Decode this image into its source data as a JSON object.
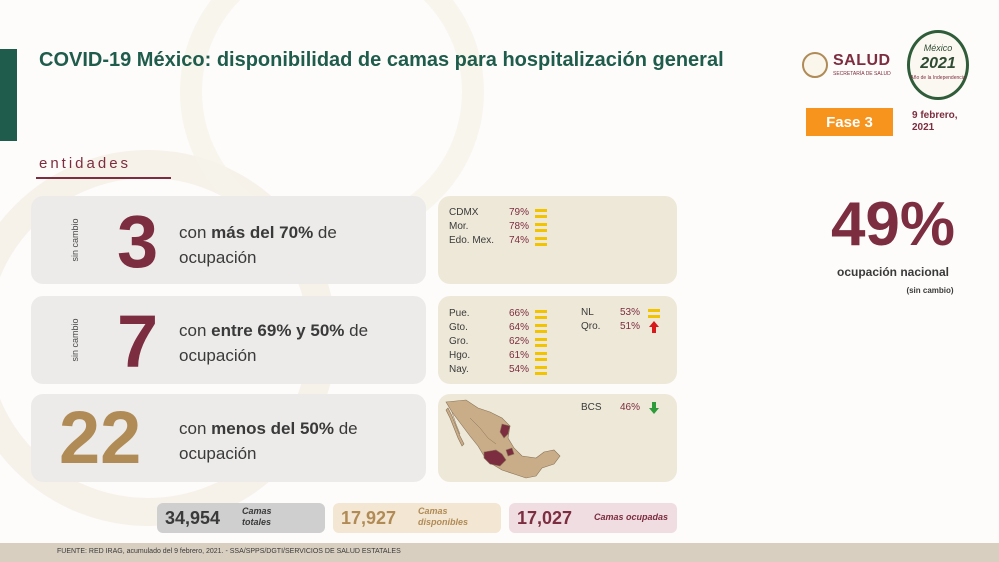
{
  "header": {
    "title": "COVID-19 México: disponibilidad de camas para hospitalización general",
    "fase": "Fase 3",
    "date_line1": "9 febrero,",
    "date_line2": "2021",
    "logo_salud": "SALUD",
    "logo_salud_sub": "SECRETARÍA DE SALUD",
    "logo_2021_mexico": "México",
    "logo_2021_year": "2021",
    "logo_2021_sub": "Año de la Independencia"
  },
  "section_label": "entidades",
  "groups": [
    {
      "side_label": "sin cambio",
      "count": "3",
      "desc_pre": "con ",
      "desc_bold": "más del 70%",
      "desc_post": " de ocupación",
      "states": [
        {
          "name": "CDMX",
          "pct": "79%",
          "trend": "equal"
        },
        {
          "name": "Mor.",
          "pct": "78%",
          "trend": "equal"
        },
        {
          "name": "Edo. Mex.",
          "pct": "74%",
          "trend": "equal"
        }
      ]
    },
    {
      "side_label": "sin cambio",
      "count": "7",
      "desc_pre": "con ",
      "desc_bold": "entre 69% y 50%",
      "desc_post": " de ocupación",
      "states": [
        {
          "name": "Pue.",
          "pct": "66%",
          "trend": "equal"
        },
        {
          "name": "Gto.",
          "pct": "64%",
          "trend": "equal"
        },
        {
          "name": "Gro.",
          "pct": "62%",
          "trend": "equal"
        },
        {
          "name": "Hgo.",
          "pct": "61%",
          "trend": "equal"
        },
        {
          "name": "Nay.",
          "pct": "54%",
          "trend": "equal"
        },
        {
          "name": "NL",
          "pct": "53%",
          "trend": "equal"
        },
        {
          "name": "Qro.",
          "pct": "51%",
          "trend": "up"
        }
      ]
    },
    {
      "side_label": "",
      "count": "22",
      "desc_pre": "con ",
      "desc_bold": "menos del 50%",
      "desc_post": " de ocupación",
      "states": [
        {
          "name": "BCS",
          "pct": "46%",
          "trend": "down"
        }
      ]
    }
  ],
  "national": {
    "pct": "49%",
    "label": "ocupación nacional",
    "sub": "(sin cambio)"
  },
  "stats": {
    "total_num": "34,954",
    "total_label1": "Camas",
    "total_label2": "totales",
    "disp_num": "17,927",
    "disp_label1": "Camas",
    "disp_label2": "disponibles",
    "ocup_num": "17,027",
    "ocup_label": "Camas ocupadas"
  },
  "footer": "FUENTE: RED IRAG, acumulado del 9 febrero, 2021. -  SSA/SPPS/DGTI/SERVICIOS DE SALUD ESTATALES",
  "colors": {
    "primary_green": "#1f5c4b",
    "wine": "#7c2d3f",
    "gold": "#b08b56",
    "orange": "#f7941d",
    "equal_yellow": "#f2c300",
    "up_red": "#d7191c",
    "down_green": "#2e9b3a"
  }
}
